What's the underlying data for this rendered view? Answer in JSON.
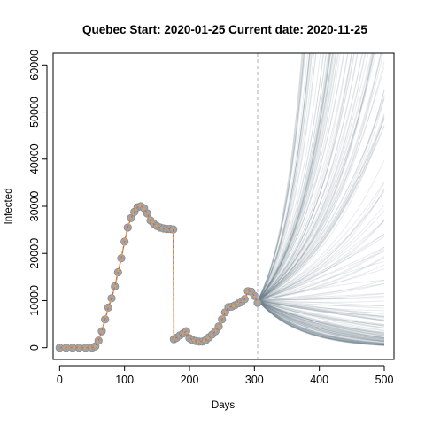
{
  "chart_data": {
    "type": "line",
    "title": "Quebec Start:  2020-01-25   Current date:  2020-11-25",
    "xlabel": "Days",
    "ylabel": "Infected",
    "xlim": [
      -10,
      515
    ],
    "ylim": [
      -2500,
      62500
    ],
    "x_ticks": [
      0,
      100,
      200,
      300,
      400,
      500
    ],
    "y_ticks": [
      0,
      10000,
      20000,
      30000,
      40000,
      50000,
      60000
    ],
    "current_day": 305,
    "grid": false,
    "series": [
      {
        "style": "observed-points",
        "x": [
          0,
          10,
          20,
          30,
          40,
          50,
          55,
          60,
          65,
          70,
          75,
          80,
          85,
          90,
          95,
          100,
          105,
          110,
          115,
          120,
          125,
          130,
          135,
          140,
          145,
          150,
          155,
          160,
          165,
          170,
          175,
          176,
          180,
          185,
          190,
          195,
          200,
          205,
          210,
          215,
          220,
          225,
          230,
          235,
          240,
          245,
          250,
          255,
          260,
          265,
          270,
          275,
          280,
          285,
          290,
          295,
          300,
          305
        ],
        "y": [
          0,
          0,
          0,
          0,
          0,
          0,
          300,
          1500,
          3500,
          6000,
          8500,
          10500,
          13000,
          16000,
          19000,
          22500,
          25500,
          27500,
          28800,
          29800,
          30000,
          29600,
          28500,
          27000,
          26300,
          25800,
          25500,
          25300,
          25200,
          25200,
          25100,
          1800,
          2100,
          2600,
          3000,
          3500,
          2000,
          1600,
          1400,
          1300,
          1300,
          1600,
          2200,
          2800,
          3500,
          4500,
          6000,
          7500,
          8600,
          8700,
          9000,
          9400,
          9700,
          10300,
          12000,
          11900,
          11000,
          9500
        ]
      },
      {
        "style": "projection-envelope",
        "x": [
          305,
          320,
          340,
          360,
          380,
          400,
          420,
          440,
          460,
          480,
          500
        ],
        "y_low": [
          10000,
          8000,
          6000,
          4500,
          3400,
          2600,
          2000,
          1500,
          1100,
          800,
          500
        ],
        "y_median": [
          10000,
          10000,
          10000,
          10000,
          10000,
          10000,
          10000,
          10000,
          10000,
          10000,
          10000
        ],
        "y_high": [
          10000,
          25000,
          62500,
          62500,
          62500,
          62500,
          62500,
          62500,
          62500,
          62500,
          62500
        ]
      }
    ]
  }
}
